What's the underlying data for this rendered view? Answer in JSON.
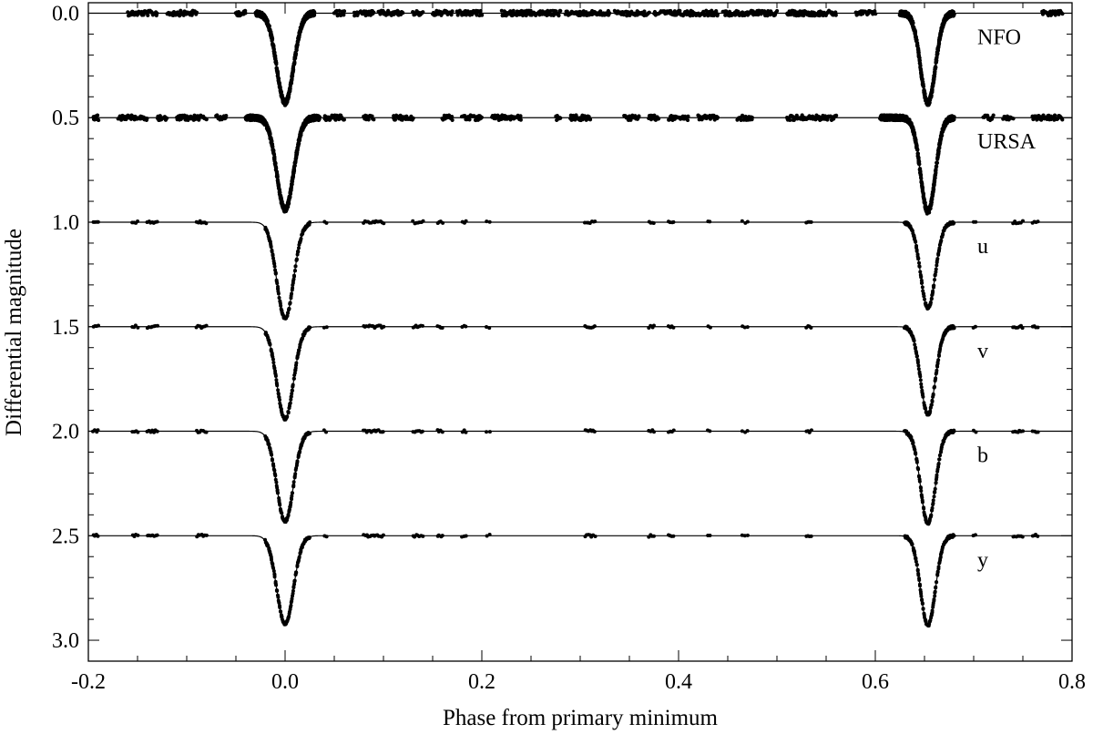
{
  "chart_data": {
    "type": "scatter",
    "title": "",
    "xlabel": "Phase from primary minimum",
    "ylabel": "Differential magnitude",
    "xlim": [
      -0.2,
      0.8
    ],
    "ylim": [
      3.1,
      -0.05
    ],
    "y_inverted": true,
    "xticks": [
      -0.2,
      0.0,
      0.2,
      0.4,
      0.6,
      0.8
    ],
    "xtick_labels": [
      "-0.2",
      "0.0",
      "0.2",
      "0.4",
      "0.6",
      "0.8"
    ],
    "yticks": [
      0.0,
      0.5,
      1.0,
      1.5,
      2.0,
      2.5,
      3.0
    ],
    "ytick_labels": [
      "0.0",
      "0.5",
      "1.0",
      "1.5",
      "2.0",
      "2.5",
      "3.0"
    ],
    "grid": false,
    "legend": "none",
    "color": "#000000",
    "eclipses": {
      "primary": {
        "phase": 0.0,
        "width": 0.0085
      },
      "secondary": {
        "phase": 0.6535,
        "width": 0.0075
      }
    },
    "series": [
      {
        "name": "NFO",
        "offset": 0.0,
        "primary_depth": 0.43,
        "secondary_depth": 0.43,
        "coverage": [
          [
            -0.16,
            -0.13
          ],
          [
            -0.12,
            -0.09
          ],
          [
            -0.05,
            -0.04
          ],
          [
            -0.03,
            0.03
          ],
          [
            0.05,
            0.06
          ],
          [
            0.07,
            0.09
          ],
          [
            0.095,
            0.12
          ],
          [
            0.13,
            0.14
          ],
          [
            0.15,
            0.17
          ],
          [
            0.175,
            0.2
          ],
          [
            0.22,
            0.28
          ],
          [
            0.285,
            0.33
          ],
          [
            0.335,
            0.37
          ],
          [
            0.375,
            0.44
          ],
          [
            0.445,
            0.5
          ],
          [
            0.51,
            0.56
          ],
          [
            0.58,
            0.6
          ],
          [
            0.625,
            0.68
          ],
          [
            0.77,
            0.79
          ]
        ]
      },
      {
        "name": "URSA",
        "offset": 0.5,
        "primary_depth": 0.44,
        "secondary_depth": 0.45,
        "coverage": [
          [
            -0.195,
            -0.19
          ],
          [
            -0.17,
            -0.14
          ],
          [
            -0.13,
            -0.12
          ],
          [
            -0.11,
            -0.08
          ],
          [
            -0.07,
            -0.06
          ],
          [
            -0.04,
            0.035
          ],
          [
            0.04,
            0.06
          ],
          [
            0.08,
            0.09
          ],
          [
            0.11,
            0.13
          ],
          [
            0.16,
            0.17
          ],
          [
            0.18,
            0.2
          ],
          [
            0.21,
            0.24
          ],
          [
            0.275,
            0.28
          ],
          [
            0.29,
            0.31
          ],
          [
            0.345,
            0.36
          ],
          [
            0.37,
            0.38
          ],
          [
            0.39,
            0.41
          ],
          [
            0.42,
            0.44
          ],
          [
            0.46,
            0.475
          ],
          [
            0.51,
            0.56
          ],
          [
            0.605,
            0.68
          ],
          [
            0.71,
            0.72
          ],
          [
            0.73,
            0.74
          ],
          [
            0.76,
            0.79
          ]
        ]
      },
      {
        "name": "u",
        "offset": 1.0,
        "primary_depth": 0.46,
        "secondary_depth": 0.41,
        "coverage": [
          [
            -0.195,
            -0.19
          ],
          [
            -0.155,
            -0.15
          ],
          [
            -0.14,
            -0.13
          ],
          [
            -0.09,
            -0.08
          ],
          [
            -0.02,
            0.025
          ],
          [
            0.04,
            0.042
          ],
          [
            0.08,
            0.1
          ],
          [
            0.13,
            0.14
          ],
          [
            0.155,
            0.16
          ],
          [
            0.18,
            0.184
          ],
          [
            0.205,
            0.208
          ],
          [
            0.305,
            0.315
          ],
          [
            0.37,
            0.375
          ],
          [
            0.39,
            0.395
          ],
          [
            0.43,
            0.432
          ],
          [
            0.465,
            0.47
          ],
          [
            0.53,
            0.535
          ],
          [
            0.63,
            0.68
          ],
          [
            0.7,
            0.702
          ],
          [
            0.74,
            0.75
          ],
          [
            0.76,
            0.765
          ]
        ]
      },
      {
        "name": "v",
        "offset": 1.5,
        "primary_depth": 0.44,
        "secondary_depth": 0.42,
        "coverage": [
          [
            -0.195,
            -0.19
          ],
          [
            -0.155,
            -0.15
          ],
          [
            -0.14,
            -0.13
          ],
          [
            -0.09,
            -0.08
          ],
          [
            -0.02,
            0.025
          ],
          [
            0.04,
            0.042
          ],
          [
            0.08,
            0.1
          ],
          [
            0.13,
            0.14
          ],
          [
            0.155,
            0.16
          ],
          [
            0.18,
            0.184
          ],
          [
            0.205,
            0.208
          ],
          [
            0.305,
            0.315
          ],
          [
            0.37,
            0.375
          ],
          [
            0.39,
            0.395
          ],
          [
            0.43,
            0.432
          ],
          [
            0.465,
            0.47
          ],
          [
            0.53,
            0.535
          ],
          [
            0.63,
            0.68
          ],
          [
            0.7,
            0.702
          ],
          [
            0.74,
            0.75
          ],
          [
            0.76,
            0.765
          ]
        ]
      },
      {
        "name": "b",
        "offset": 2.0,
        "primary_depth": 0.43,
        "secondary_depth": 0.44,
        "coverage": [
          [
            -0.195,
            -0.19
          ],
          [
            -0.155,
            -0.15
          ],
          [
            -0.14,
            -0.13
          ],
          [
            -0.09,
            -0.08
          ],
          [
            -0.02,
            0.025
          ],
          [
            0.04,
            0.042
          ],
          [
            0.08,
            0.1
          ],
          [
            0.13,
            0.14
          ],
          [
            0.155,
            0.16
          ],
          [
            0.18,
            0.184
          ],
          [
            0.205,
            0.208
          ],
          [
            0.305,
            0.315
          ],
          [
            0.37,
            0.375
          ],
          [
            0.39,
            0.395
          ],
          [
            0.43,
            0.432
          ],
          [
            0.465,
            0.47
          ],
          [
            0.53,
            0.535
          ],
          [
            0.63,
            0.68
          ],
          [
            0.7,
            0.702
          ],
          [
            0.74,
            0.75
          ],
          [
            0.76,
            0.765
          ]
        ]
      },
      {
        "name": "y",
        "offset": 2.5,
        "primary_depth": 0.42,
        "secondary_depth": 0.43,
        "coverage": [
          [
            -0.195,
            -0.19
          ],
          [
            -0.155,
            -0.15
          ],
          [
            -0.14,
            -0.13
          ],
          [
            -0.09,
            -0.08
          ],
          [
            -0.02,
            0.025
          ],
          [
            0.04,
            0.042
          ],
          [
            0.08,
            0.1
          ],
          [
            0.13,
            0.14
          ],
          [
            0.155,
            0.16
          ],
          [
            0.18,
            0.184
          ],
          [
            0.205,
            0.208
          ],
          [
            0.305,
            0.315
          ],
          [
            0.37,
            0.375
          ],
          [
            0.39,
            0.395
          ],
          [
            0.43,
            0.432
          ],
          [
            0.465,
            0.47
          ],
          [
            0.53,
            0.535
          ],
          [
            0.63,
            0.68
          ],
          [
            0.7,
            0.702
          ],
          [
            0.74,
            0.75
          ],
          [
            0.76,
            0.765
          ]
        ]
      }
    ]
  }
}
